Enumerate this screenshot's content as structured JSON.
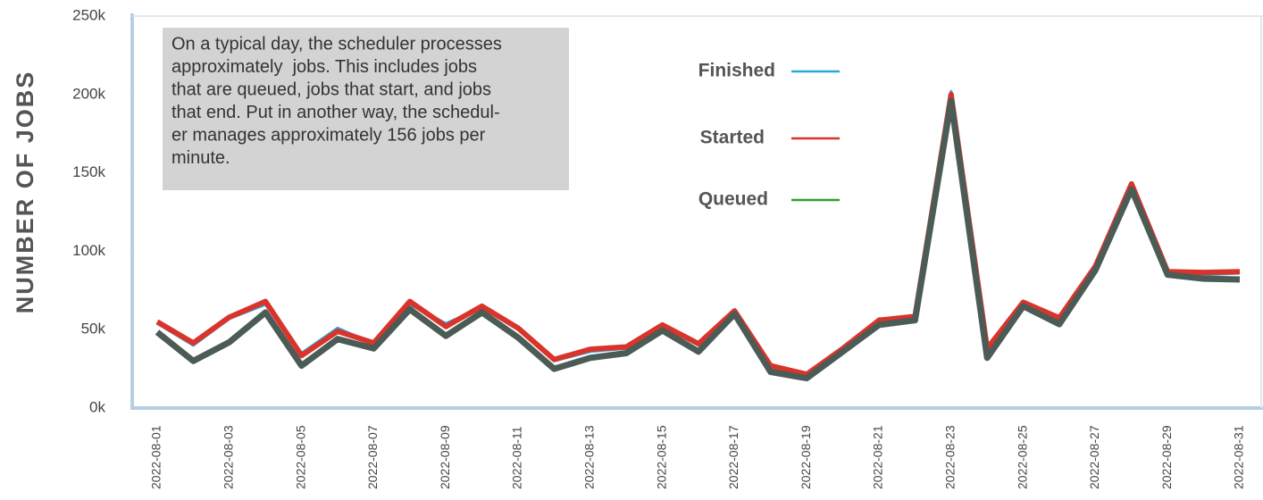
{
  "chart_data": {
    "type": "line",
    "y_label": "NUMBER OF JOBS",
    "annotation": [
      "On a typical day, the scheduler processes",
      "approximately  jobs. This includes jobs",
      "that are queued, jobs that start, and jobs",
      "that end. Put in another way, the schedul-",
      "er manages approximately 156 jobs per",
      "minute."
    ],
    "categories": [
      "2022-08-01",
      null,
      "2022-08-03",
      null,
      "2022-08-05",
      null,
      "2022-08-07",
      null,
      "2022-08-09",
      null,
      "2022-08-11",
      null,
      "2022-08-13",
      null,
      "2022-08-15",
      null,
      "2022-08-17",
      null,
      "2022-08-19",
      null,
      "2022-08-21",
      null,
      "2022-08-23",
      null,
      "2022-08-25",
      null,
      "2022-08-27",
      null,
      "2022-08-29",
      null,
      "2022-08-31"
    ],
    "series": [
      {
        "name": "Finished",
        "color": "#29a8e0",
        "values": [
          54000,
          40000,
          57000,
          66000,
          35000,
          51000,
          41000,
          66000,
          54000,
          64000,
          50000,
          30000,
          36000,
          38000,
          52000,
          40000,
          61000,
          26000,
          20000,
          37000,
          57000,
          57000,
          202000,
          36000,
          66000,
          56000,
          89000,
          142000,
          86000,
          85000,
          86000
        ]
      },
      {
        "name": "Started",
        "color": "#d9342b",
        "values": [
          55000,
          41500,
          58000,
          68000,
          33500,
          49000,
          41500,
          68000,
          52000,
          65000,
          51000,
          31000,
          37500,
          39000,
          53000,
          41000,
          62000,
          27000,
          21500,
          38000,
          56000,
          58500,
          200000,
          38000,
          67500,
          57500,
          90500,
          143000,
          87000,
          86500,
          87000
        ]
      },
      {
        "name": "Queued",
        "color": "#2ca02c",
        "line_color": "#4b5b55",
        "values": [
          48400,
          30000,
          42000,
          61000,
          27000,
          44000,
          38000,
          63000,
          46000,
          61000,
          45000,
          25000,
          32000,
          35000,
          49500,
          36000,
          60000,
          23000,
          19000,
          36000,
          53000,
          56000,
          196000,
          32000,
          65000,
          53500,
          88000,
          139500,
          85000,
          82500,
          82000
        ]
      }
    ],
    "ylim": [
      0,
      250000
    ],
    "yticks": [
      {
        "value": 0,
        "label": "0k"
      },
      {
        "value": 50000,
        "label": "50k"
      },
      {
        "value": 100000,
        "label": "100k"
      },
      {
        "value": 150000,
        "label": "150k"
      },
      {
        "value": 200000,
        "label": "200k"
      },
      {
        "value": 250000,
        "label": "250k"
      }
    ],
    "grid": false
  }
}
